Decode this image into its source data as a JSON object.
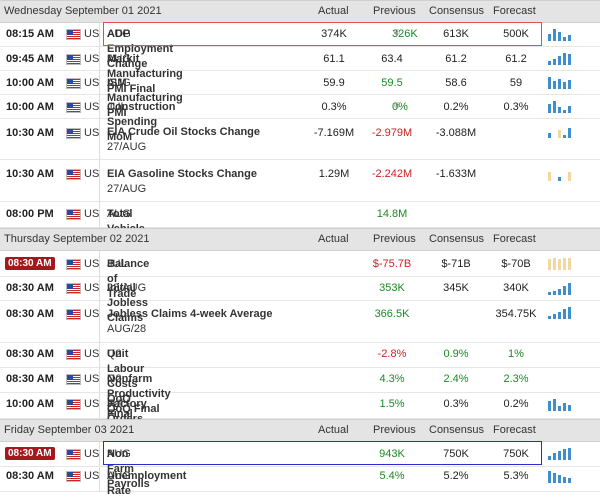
{
  "columns": {
    "actual": "Actual",
    "previous": "Previous",
    "consensus": "Consensus",
    "forecast": "Forecast"
  },
  "days": [
    {
      "title": "Wednesday September 01 2021"
    },
    {
      "title": "Thursday September 02 2021"
    },
    {
      "title": "Friday September 03 2021"
    }
  ],
  "events": [
    {
      "time": "08:15 AM",
      "country": "US",
      "name": "ADP Employment Change",
      "sub": "AUG",
      "actual": "374K",
      "previous": "326K",
      "previous_rev": "®",
      "consensus": "613K",
      "forecast": "500K"
    },
    {
      "time": "09:45 AM",
      "country": "US",
      "name": "Markit Manufacturing PMI Final",
      "sub": "AUG",
      "actual": "61.1",
      "previous": "63.4",
      "consensus": "61.2",
      "forecast": "61.2"
    },
    {
      "time": "10:00 AM",
      "country": "US",
      "name": "ISM Manufacturing PMI",
      "sub": "AUG",
      "actual": "59.9",
      "previous": "59.5",
      "consensus": "58.6",
      "forecast": "59"
    },
    {
      "time": "10:00 AM",
      "country": "US",
      "name": "Construction Spending MoM",
      "sub": "JUL",
      "actual": "0.3%",
      "previous": "0%",
      "previous_rev": "®",
      "consensus": "0.2%",
      "forecast": "0.3%"
    },
    {
      "time": "10:30 AM",
      "country": "US",
      "name": "EIA Crude Oil Stocks Change",
      "sub": "27/AUG",
      "actual": "-7.169M",
      "previous": "-2.979M",
      "consensus": "-3.088M",
      "forecast": ""
    },
    {
      "time": "10:30 AM",
      "country": "US",
      "name": "EIA Gasoline Stocks Change",
      "sub": "27/AUG",
      "actual": "1.29M",
      "previous": "-2.242M",
      "consensus": "-1.633M",
      "forecast": ""
    },
    {
      "time": "08:00 PM",
      "country": "US",
      "name": "Total Vehicle Sales",
      "sub": "AUG",
      "actual": "",
      "previous": "14.8M",
      "consensus": "",
      "forecast": ""
    },
    {
      "time": "08:30 AM",
      "country": "US",
      "name": "Balance of Trade",
      "sub": "JUL",
      "actual": "",
      "previous": "$-75.7B",
      "consensus": "$-71B",
      "forecast": "$-70B"
    },
    {
      "time": "08:30 AM",
      "country": "US",
      "name": "Initial Jobless Claims",
      "sub": "28/AUG",
      "actual": "",
      "previous": "353K",
      "consensus": "345K",
      "forecast": "340K"
    },
    {
      "time": "08:30 AM",
      "country": "US",
      "name": "Jobless Claims 4-week Average",
      "sub": "AUG/28",
      "actual": "",
      "previous": "366.5K",
      "consensus": "",
      "forecast": "354.75K"
    },
    {
      "time": "08:30 AM",
      "country": "US",
      "name": "Unit Labour Costs QoQ Final",
      "sub": "Q2",
      "actual": "",
      "previous": "-2.8%",
      "consensus": "0.9%",
      "forecast": "1%"
    },
    {
      "time": "08:30 AM",
      "country": "US",
      "name": "Nonfarm Productivity QoQ Final",
      "sub": "Q2",
      "actual": "",
      "previous": "4.3%",
      "consensus": "2.4%",
      "forecast": "2.3%"
    },
    {
      "time": "10:00 AM",
      "country": "US",
      "name": "Factory Orders MoM",
      "sub": "JUL",
      "actual": "",
      "previous": "1.5%",
      "consensus": "0.3%",
      "forecast": "0.2%"
    },
    {
      "time": "08:30 AM",
      "country": "US",
      "name": "Non Farm Payrolls",
      "sub": "AUG",
      "actual": "",
      "previous": "943K",
      "consensus": "750K",
      "forecast": "750K"
    },
    {
      "time": "08:30 AM",
      "country": "US",
      "name": "Unemployment Rate",
      "sub": "AUG",
      "actual": "",
      "previous": "5.4%",
      "consensus": "5.2%",
      "forecast": "5.3%"
    }
  ],
  "colors": {
    "up": "#1b8a22",
    "down": "#cc2222",
    "highlight_time": "#a2181c",
    "red_box": "#e05050",
    "blue_box": "#2a2ad0",
    "bars_blue": "#3f8fd0",
    "bars_tan": "#f3d7a0"
  }
}
